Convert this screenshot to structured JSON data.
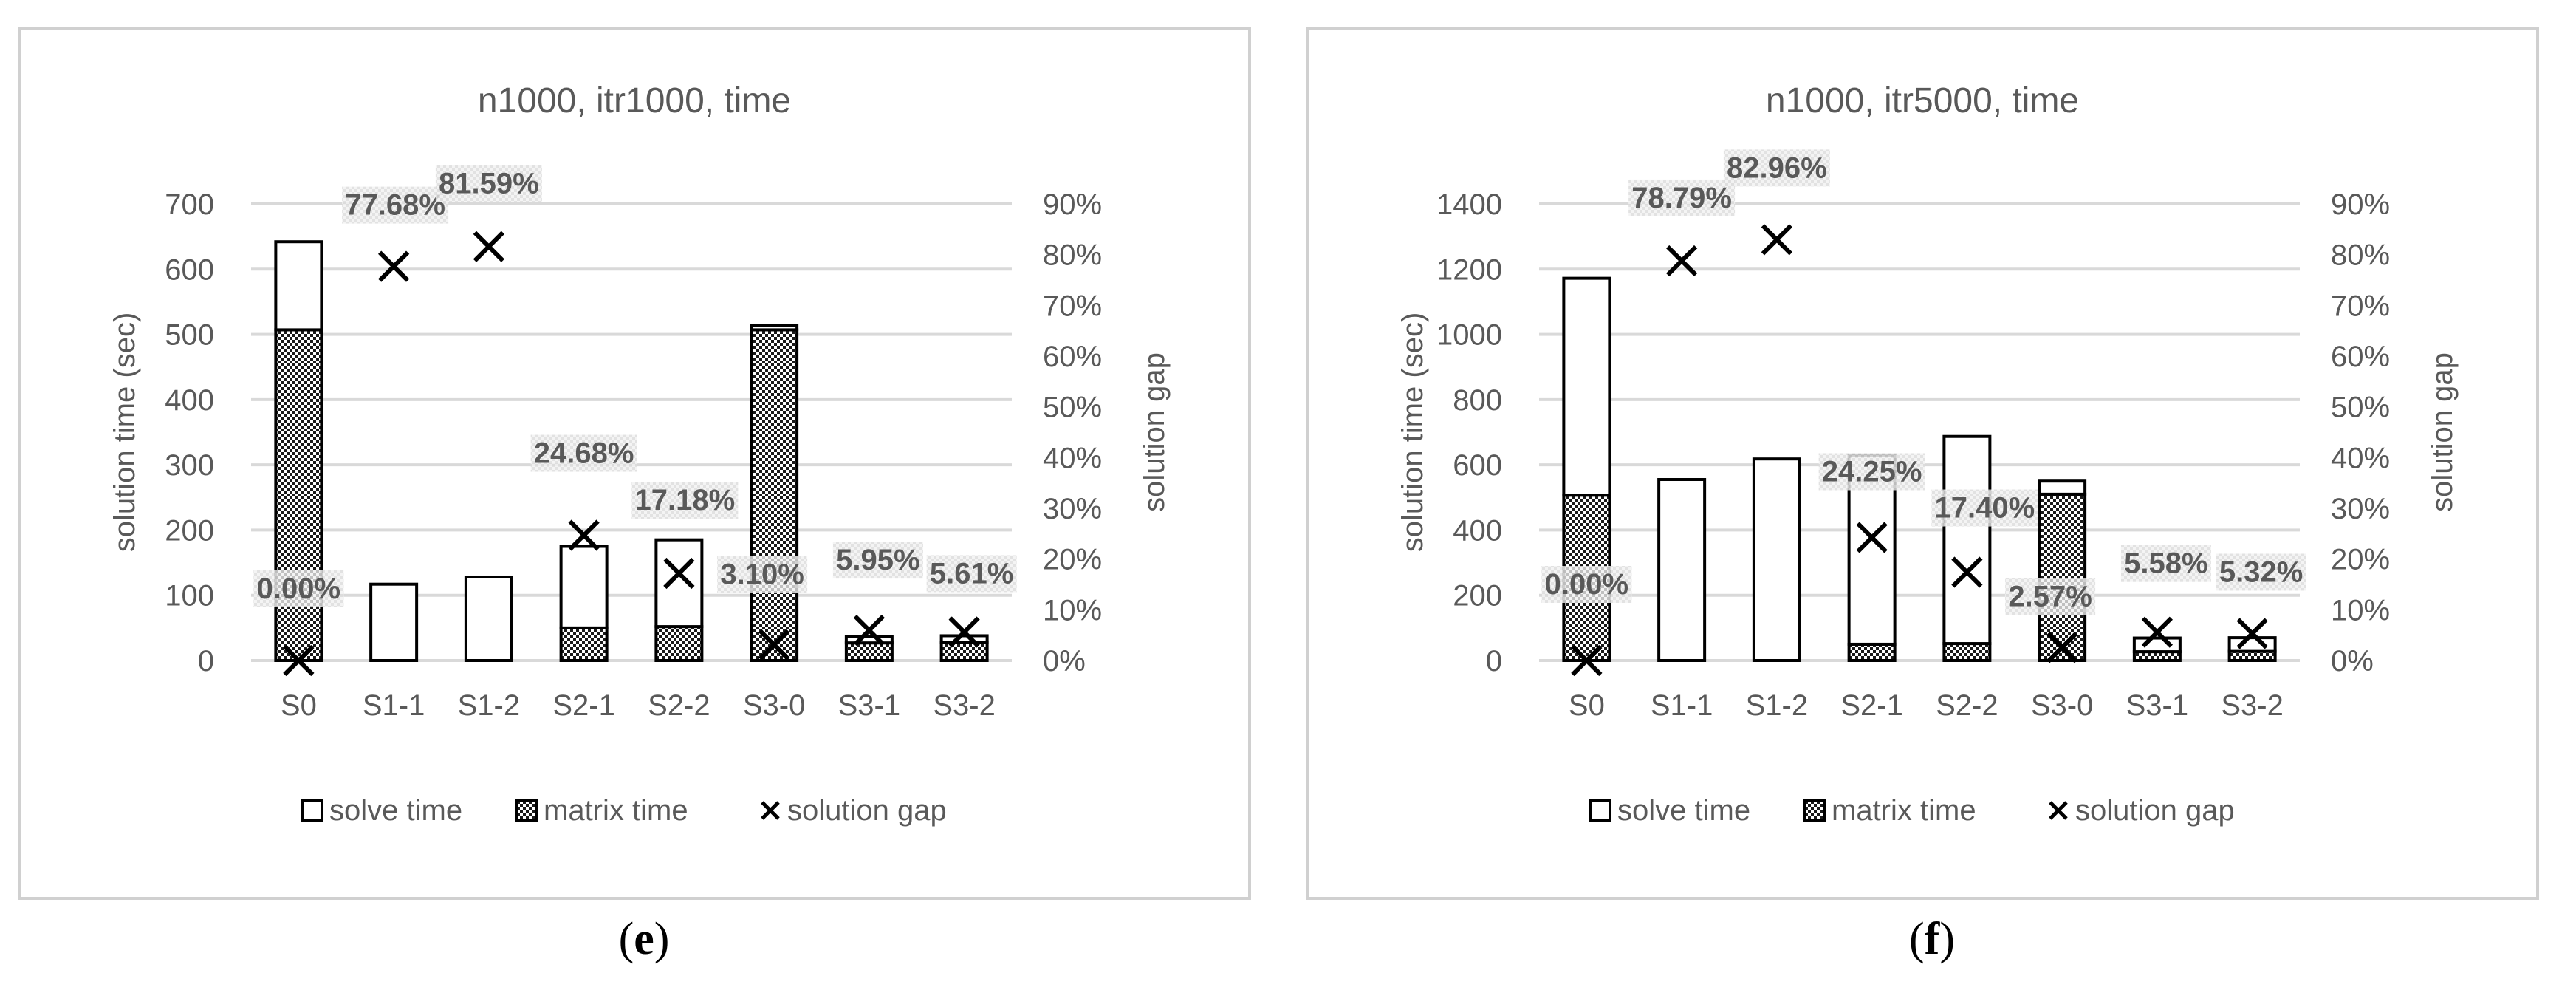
{
  "chart_data": [
    {
      "type": "bar",
      "title": "n1000, itr1000, time",
      "caption": "e",
      "ylabel": "solution time (sec)",
      "y2label": "solution gap",
      "categories": [
        "S0",
        "S1-1",
        "S1-2",
        "S2-1",
        "S2-2",
        "S3-0",
        "S3-1",
        "S3-2"
      ],
      "ylim": [
        0,
        700
      ],
      "yticks": [
        "0",
        "100",
        "200",
        "300",
        "400",
        "500",
        "600",
        "700"
      ],
      "y2lim": [
        0,
        90
      ],
      "y2ticks": [
        "0%",
        "10%",
        "20%",
        "30%",
        "40%",
        "50%",
        "60%",
        "70%",
        "80%",
        "90%"
      ],
      "series": [
        {
          "name": "solve time",
          "kind": "bar",
          "values": [
            135,
            117,
            128,
            125,
            133,
            7,
            10,
            10
          ]
        },
        {
          "name": "matrix time",
          "kind": "bar",
          "values": [
            507,
            0,
            0,
            50,
            52,
            507,
            27,
            28
          ]
        },
        {
          "name": "solution gap",
          "kind": "marker",
          "values": [
            0.0,
            77.68,
            81.59,
            24.68,
            17.18,
            3.1,
            5.95,
            5.61
          ],
          "labels": [
            "0.00%",
            "77.68%",
            "81.59%",
            "24.68%",
            "17.18%",
            "3.10%",
            "5.95%",
            "5.61%"
          ]
        }
      ],
      "legend": [
        "solve time",
        "matrix time",
        "solution gap"
      ],
      "legend_position": "bottom",
      "grid": true
    },
    {
      "type": "bar",
      "title": "n1000, itr5000, time",
      "caption": "f",
      "ylabel": "solution time (sec)",
      "y2label": "solution gap",
      "categories": [
        "S0",
        "S1-1",
        "S1-2",
        "S2-1",
        "S2-2",
        "S3-0",
        "S3-1",
        "S3-2"
      ],
      "ylim": [
        0,
        1400
      ],
      "yticks": [
        "0",
        "200",
        "400",
        "600",
        "800",
        "1000",
        "1200",
        "1400"
      ],
      "y2lim": [
        0,
        90
      ],
      "y2ticks": [
        "0%",
        "10%",
        "20%",
        "30%",
        "40%",
        "50%",
        "60%",
        "70%",
        "80%",
        "90%"
      ],
      "series": [
        {
          "name": "solve time",
          "kind": "bar",
          "values": [
            665,
            555,
            618,
            580,
            635,
            40,
            42,
            42
          ]
        },
        {
          "name": "matrix time",
          "kind": "bar",
          "values": [
            507,
            0,
            0,
            50,
            52,
            510,
            27,
            28
          ]
        },
        {
          "name": "solution gap",
          "kind": "marker",
          "values": [
            0.0,
            78.79,
            82.96,
            24.25,
            17.4,
            2.57,
            5.58,
            5.32
          ],
          "labels": [
            "0.00%",
            "78.79%",
            "82.96%",
            "24.25%",
            "17.40%",
            "2.57%",
            "5.58%",
            "5.32%"
          ]
        }
      ],
      "legend": [
        "solve time",
        "matrix time",
        "solution gap"
      ],
      "legend_position": "bottom",
      "grid": true
    }
  ],
  "colors": {
    "gridline": "#d9d9d9",
    "border": "#d0d0d0",
    "text": "#595959",
    "bar_stroke": "#000000",
    "label_text": "#595959"
  }
}
